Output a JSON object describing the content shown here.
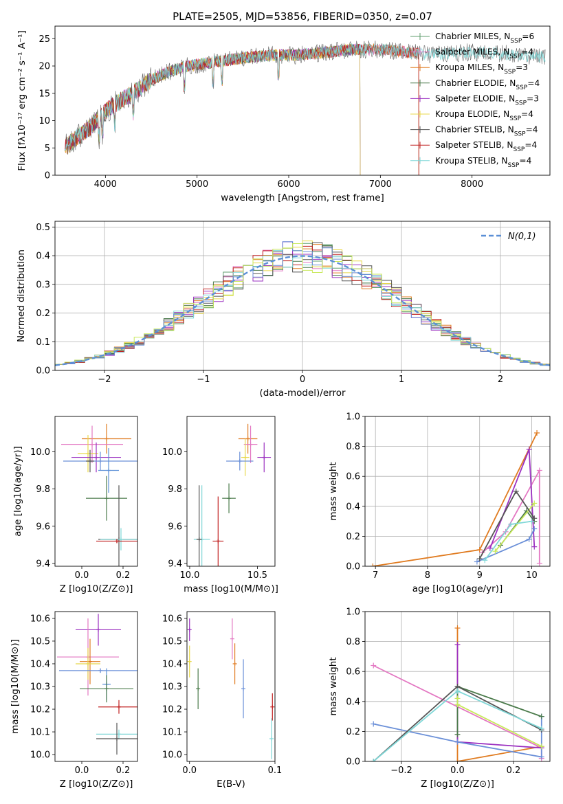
{
  "figure_title": "PLATE=2505, MJD=53856, FIBERID=0350, z=0.07",
  "colors": {
    "chabrier_miles": "#5f9e6e",
    "salpeter_miles": "#e377c2",
    "kroupa_miles": "#e07b20",
    "chabrier_elodie": "#4a7a4a",
    "salpeter_elodie": "#9b30c0",
    "kroupa_elodie": "#e8d84a",
    "chabrier_stelib": "#555555",
    "salpeter_stelib": "#c02020",
    "kroupa_stelib": "#7fd7d7",
    "gauss": "#5b8fd6",
    "extra_blue": "#6a8fd8",
    "extra_green": "#c8e85a"
  },
  "chart_data": [
    {
      "id": "spectrum",
      "type": "line",
      "xlabel": "wavelength [Angstrom, rest frame]",
      "xlim": [
        3450,
        8850
      ],
      "ylim": [
        0,
        27.3
      ],
      "xticks": [
        4000,
        5000,
        6000,
        7000,
        8000
      ],
      "yticks": [
        0,
        5,
        10,
        15,
        20,
        25
      ],
      "legend_position": "upper-right",
      "continuum": [
        [
          3550,
          5
        ],
        [
          3700,
          7
        ],
        [
          3850,
          9
        ],
        [
          3950,
          11
        ],
        [
          4100,
          13
        ],
        [
          4300,
          15
        ],
        [
          4500,
          17.5
        ],
        [
          4700,
          19
        ],
        [
          4900,
          20
        ],
        [
          5100,
          20.5
        ],
        [
          5300,
          21
        ],
        [
          5500,
          21.5
        ],
        [
          5800,
          22
        ],
        [
          6100,
          22
        ],
        [
          6400,
          22.5
        ],
        [
          6700,
          23
        ],
        [
          7000,
          23
        ],
        [
          7300,
          22.5
        ],
        [
          7600,
          22
        ],
        [
          7900,
          22.5
        ],
        [
          8200,
          22.5
        ],
        [
          8500,
          22
        ],
        [
          8800,
          21.5
        ]
      ],
      "series": [
        {
          "name": "Chabrier MILES",
          "nssp": "6",
          "color_key": "chabrier_miles",
          "xmax": 7420
        },
        {
          "name": "Salpeter MILES",
          "nssp": "4",
          "color_key": "salpeter_miles",
          "xmax": 7420
        },
        {
          "name": "Kroupa MILES",
          "nssp": "3",
          "color_key": "kroupa_miles",
          "xmax": 7420
        },
        {
          "name": "Chabrier ELODIE",
          "nssp": "4",
          "color_key": "chabrier_elodie",
          "xmax": 6780
        },
        {
          "name": "Salpeter ELODIE",
          "nssp": "3",
          "color_key": "salpeter_elodie",
          "xmax": 6780
        },
        {
          "name": "Kroupa ELODIE",
          "nssp": "4",
          "color_key": "kroupa_elodie",
          "xmax": 6780
        },
        {
          "name": "Chabrier STELIB",
          "nssp": "4",
          "color_key": "chabrier_stelib",
          "xmax": 8800
        },
        {
          "name": "Salpeter STELIB",
          "nssp": "4",
          "color_key": "salpeter_stelib",
          "xmax": 7420
        },
        {
          "name": "Kroupa STELIB",
          "nssp": "4",
          "color_key": "kroupa_stelib",
          "xmax": 8800
        }
      ]
    },
    {
      "id": "residuals",
      "type": "histogram",
      "xlabel": "(data-model)/error",
      "ylabel": "Normed distribution",
      "xlim": [
        -2.5,
        2.5
      ],
      "ylim": [
        0,
        0.52
      ],
      "xticks": [
        -2,
        -1,
        0,
        1,
        2
      ],
      "yticks": [
        0.0,
        0.1,
        0.2,
        0.3,
        0.4,
        0.5
      ],
      "grid": true,
      "legend_position": "upper-right",
      "legend_label": "N(0,1)",
      "bins": [
        -2.5,
        2.5,
        50
      ],
      "series_colors": [
        "chabrier_miles",
        "salpeter_miles",
        "kroupa_miles",
        "chabrier_elodie",
        "salpeter_elodie",
        "kroupa_elodie",
        "chabrier_stelib",
        "salpeter_stelib",
        "kroupa_stelib",
        "extra_blue",
        "extra_green"
      ]
    },
    {
      "id": "age_vs_Z",
      "type": "scatter",
      "xlabel": "Z [log10(Z/Z⊙)]",
      "ylabel": "age  [log10(age/yr)]",
      "xlim": [
        -0.13,
        0.27
      ],
      "ylim": [
        9.385,
        10.19
      ],
      "xticks": [
        0.0,
        0.2
      ],
      "yticks": [
        9.4,
        9.6,
        9.8,
        10.0
      ],
      "points": [
        {
          "color_key": "kroupa_miles",
          "x": 0.12,
          "xerr": 0.12,
          "y": 10.07,
          "yerr": 0.08
        },
        {
          "color_key": "salpeter_miles",
          "x": 0.05,
          "xerr": 0.15,
          "y": 10.04,
          "yerr": 0.1
        },
        {
          "color_key": "kroupa_elodie",
          "x": 0.03,
          "xerr": 0.05,
          "y": 9.99,
          "yerr": 0.1
        },
        {
          "color_key": "salpeter_elodie",
          "x": 0.07,
          "xerr": 0.12,
          "y": 9.97,
          "yerr": 0.08
        },
        {
          "color_key": "extra_blue",
          "x": 0.09,
          "xerr": 0.18,
          "y": 9.95,
          "yerr": 0.05
        },
        {
          "color_key": "chabrier_stelib",
          "x": 0.04,
          "xerr": 0.02,
          "y": 9.95,
          "yerr": 0.06
        },
        {
          "color_key": "chabrier_elodie",
          "x": 0.12,
          "xerr": 0.1,
          "y": 9.75,
          "yerr": 0.12
        },
        {
          "color_key": "gauss",
          "x": 0.13,
          "xerr": 0.05,
          "y": 9.9,
          "yerr": 0.12
        },
        {
          "color_key": "chabrier_stelib",
          "x": 0.18,
          "xerr": 0.1,
          "y": 9.53,
          "yerr": 0.29
        },
        {
          "color_key": "kroupa_stelib",
          "x": 0.19,
          "xerr": 0.1,
          "y": 9.53,
          "yerr": 0.06
        },
        {
          "color_key": "salpeter_stelib",
          "x": 0.17,
          "xerr": 0.1,
          "y": 9.52,
          "yerr": 0.01
        }
      ]
    },
    {
      "id": "age_vs_mass",
      "type": "scatter",
      "xlabel": "mass [log10(M/M⊙)]",
      "xlim": [
        9.98,
        10.63
      ],
      "ylim": [
        9.385,
        10.19
      ],
      "xticks": [
        10.0,
        10.5
      ],
      "yticks": [
        9.4,
        9.6,
        9.8,
        10.0
      ],
      "points": [
        {
          "color_key": "kroupa_miles",
          "x": 10.43,
          "xerr": 0.07,
          "y": 10.07,
          "yerr": 0.08
        },
        {
          "color_key": "salpeter_miles",
          "x": 10.45,
          "xerr": 0.05,
          "y": 10.04,
          "yerr": 0.1
        },
        {
          "color_key": "salpeter_elodie",
          "x": 10.55,
          "xerr": 0.05,
          "y": 9.97,
          "yerr": 0.08
        },
        {
          "color_key": "kroupa_elodie",
          "x": 10.41,
          "xerr": 0.03,
          "y": 9.97,
          "yerr": 0.1
        },
        {
          "color_key": "extra_blue",
          "x": 10.37,
          "xerr": 0.1,
          "y": 9.95,
          "yerr": 0.05
        },
        {
          "color_key": "chabrier_elodie",
          "x": 10.29,
          "xerr": 0.05,
          "y": 9.75,
          "yerr": 0.08
        },
        {
          "color_key": "salpeter_stelib",
          "x": 10.21,
          "xerr": 0.04,
          "y": 9.52,
          "yerr": 0.24
        },
        {
          "color_key": "kroupa_stelib",
          "x": 10.09,
          "xerr": 0.06,
          "y": 9.53,
          "yerr": 0.29
        },
        {
          "color_key": "chabrier_stelib",
          "x": 10.07,
          "xerr": 0.02,
          "y": 9.53,
          "yerr": 0.29
        }
      ]
    },
    {
      "id": "weight_vs_age",
      "type": "line",
      "xlabel": "age  [log10(age/yr)]",
      "ylabel": "mass weight",
      "xlim": [
        6.8,
        10.35
      ],
      "ylim": [
        0,
        1.0
      ],
      "xticks": [
        7,
        8,
        9,
        10
      ],
      "yticks": [
        0.0,
        0.2,
        0.4,
        0.6,
        0.8,
        1.0
      ],
      "grid": true,
      "series": [
        {
          "color_key": "kroupa_miles",
          "x": [
            6.95,
            9.0,
            10.1
          ],
          "y": [
            0.0,
            0.11,
            0.89
          ]
        },
        {
          "color_key": "salpeter_miles",
          "x": [
            9.05,
            9.5,
            10.15,
            10.15
          ],
          "y": [
            0.09,
            0.23,
            0.64,
            0.02
          ]
        },
        {
          "color_key": "salpeter_elodie",
          "x": [
            9.2,
            9.95,
            10.05
          ],
          "y": [
            0.12,
            0.78,
            0.13
          ]
        },
        {
          "color_key": "extra_blue",
          "x": [
            8.95,
            9.95,
            10.05
          ],
          "y": [
            0.03,
            0.18,
            0.25
          ]
        },
        {
          "color_key": "chabrier_elodie",
          "x": [
            9.4,
            9.9,
            10.05
          ],
          "y": [
            0.14,
            0.37,
            0.3
          ]
        },
        {
          "color_key": "extra_green",
          "x": [
            9.3,
            10.05
          ],
          "y": [
            0.1,
            0.42
          ]
        },
        {
          "color_key": "chabrier_stelib",
          "x": [
            9.0,
            9.7,
            10.05
          ],
          "y": [
            0.05,
            0.5,
            0.32
          ]
        },
        {
          "color_key": "kroupa_stelib",
          "x": [
            9.1,
            9.6,
            10.0
          ],
          "y": [
            0.04,
            0.28,
            0.3
          ]
        }
      ]
    },
    {
      "id": "mass_vs_Z",
      "type": "scatter",
      "xlabel": "Z [log10(Z/Z⊙)]",
      "ylabel": "mass [log10(M/M⊙)]",
      "xlim": [
        -0.13,
        0.27
      ],
      "ylim": [
        9.97,
        10.63
      ],
      "xticks": [
        0.0,
        0.2
      ],
      "yticks": [
        10.0,
        10.1,
        10.2,
        10.3,
        10.4,
        10.5,
        10.6
      ],
      "points": [
        {
          "color_key": "salpeter_elodie",
          "x": 0.08,
          "xerr": 0.11,
          "y": 10.55,
          "yerr": 0.07
        },
        {
          "color_key": "salpeter_miles",
          "x": 0.03,
          "xerr": 0.15,
          "y": 10.43,
          "yerr": 0.17
        },
        {
          "color_key": "kroupa_miles",
          "x": 0.04,
          "xerr": 0.05,
          "y": 10.41,
          "yerr": 0.1
        },
        {
          "color_key": "kroupa_elodie",
          "x": 0.03,
          "xerr": 0.06,
          "y": 10.4,
          "yerr": 0.07
        },
        {
          "color_key": "extra_blue",
          "x": 0.09,
          "xerr": 0.2,
          "y": 10.37,
          "yerr": 0.01
        },
        {
          "color_key": "gauss",
          "x": 0.12,
          "xerr": 0.02,
          "y": 10.31,
          "yerr": 0.07
        },
        {
          "color_key": "chabrier_elodie",
          "x": 0.12,
          "xerr": 0.13,
          "y": 10.29,
          "yerr": 0.06
        },
        {
          "color_key": "salpeter_stelib",
          "x": 0.18,
          "xerr": 0.1,
          "y": 10.21,
          "yerr": 0.03
        },
        {
          "color_key": "kroupa_stelib",
          "x": 0.18,
          "xerr": 0.11,
          "y": 10.09,
          "yerr": 0.02
        },
        {
          "color_key": "chabrier_stelib",
          "x": 0.17,
          "xerr": 0.1,
          "y": 10.07,
          "yerr": 0.07
        }
      ]
    },
    {
      "id": "mass_vs_ebv",
      "type": "scatter",
      "xlabel": "E(B-V)",
      "xlim": [
        -0.003,
        0.1
      ],
      "ylim": [
        9.97,
        10.63
      ],
      "xticks": [
        0.0,
        0.1
      ],
      "yticks": [
        10.0,
        10.1,
        10.2,
        10.3,
        10.4,
        10.5,
        10.6
      ],
      "points": [
        {
          "color_key": "salpeter_elodie",
          "x": 0.0,
          "xerr": 0.0,
          "y": 10.55,
          "yerr": 0.05
        },
        {
          "color_key": "kroupa_elodie",
          "x": 0.0,
          "xerr": 0.0,
          "y": 10.41,
          "yerr": 0.07
        },
        {
          "color_key": "salpeter_miles",
          "x": 0.05,
          "xerr": 0.0,
          "y": 10.51,
          "yerr": 0.09
        },
        {
          "color_key": "kroupa_miles",
          "x": 0.053,
          "xerr": 0.0,
          "y": 10.4,
          "yerr": 0.09
        },
        {
          "color_key": "extra_blue",
          "x": 0.063,
          "xerr": 0.0,
          "y": 10.29,
          "yerr": 0.13
        },
        {
          "color_key": "chabrier_elodie",
          "x": 0.01,
          "xerr": 0.0,
          "y": 10.29,
          "yerr": 0.09
        },
        {
          "color_key": "salpeter_stelib",
          "x": 0.097,
          "xerr": 0.0,
          "y": 10.21,
          "yerr": 0.06
        },
        {
          "color_key": "kroupa_stelib",
          "x": 0.096,
          "xerr": 0.0,
          "y": 10.07,
          "yerr": 0.09
        }
      ]
    },
    {
      "id": "weight_vs_Z",
      "type": "line",
      "xlabel": "Z [log10(Z/Z⊙)]",
      "ylabel": "mass weight",
      "xlim": [
        -0.33,
        0.33
      ],
      "ylim": [
        0,
        1.0
      ],
      "xticks": [
        -0.2,
        0.0,
        0.2
      ],
      "yticks": [
        0.0,
        0.2,
        0.4,
        0.6,
        0.8,
        1.0
      ],
      "grid": true,
      "series": [
        {
          "color_key": "kroupa_miles",
          "x": [
            0.0,
            0.0,
            0.3
          ],
          "y": [
            0.89,
            0.0,
            0.1
          ]
        },
        {
          "color_key": "salpeter_miles",
          "x": [
            -0.3,
            0.3,
            0.3
          ],
          "y": [
            0.64,
            0.09,
            0.02
          ]
        },
        {
          "color_key": "salpeter_elodie",
          "x": [
            0.0,
            0.0,
            0.3
          ],
          "y": [
            0.78,
            0.13,
            0.09
          ]
        },
        {
          "color_key": "extra_blue",
          "x": [
            -0.3,
            0.0,
            0.3,
            0.3
          ],
          "y": [
            0.25,
            0.13,
            0.03,
            0.3
          ]
        },
        {
          "color_key": "chabrier_elodie",
          "x": [
            0.0,
            0.0,
            0.3
          ],
          "y": [
            0.18,
            0.5,
            0.3
          ]
        },
        {
          "color_key": "extra_green",
          "x": [
            0.0,
            0.0,
            0.3
          ],
          "y": [
            0.42,
            0.38,
            0.1
          ]
        },
        {
          "color_key": "chabrier_stelib",
          "x": [
            -0.3,
            0.0,
            0.3
          ],
          "y": [
            0.0,
            0.5,
            0.21
          ]
        },
        {
          "color_key": "kroupa_stelib",
          "x": [
            -0.3,
            0.0,
            0.3
          ],
          "y": [
            0.0,
            0.47,
            0.22
          ]
        }
      ]
    }
  ]
}
